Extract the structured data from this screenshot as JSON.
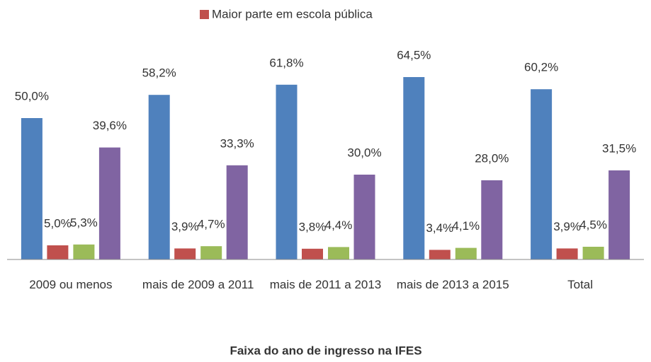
{
  "chart_data": {
    "type": "bar",
    "x_label": "Faixa do ano de ingresso na IFES",
    "categories": [
      "2009 ou menos",
      "mais de 2009 a 2011",
      "mais de 2011 a 2013",
      "mais de 2013 a 2015",
      "Total"
    ],
    "series": [
      {
        "color": "#4f81bd",
        "values": [
          50.0,
          58.2,
          61.8,
          64.5,
          60.2
        ],
        "value_labels": [
          "50,0%",
          "58,2%",
          "61,8%",
          "64,5%",
          "60,2%"
        ]
      },
      {
        "name": "Maior parte em escola pública",
        "color": "#c0504d",
        "values": [
          5.0,
          3.9,
          3.8,
          3.4,
          3.9
        ],
        "value_labels": [
          "5,0%",
          "3,9%",
          "3,8%",
          "3,4%",
          "3,9%"
        ]
      },
      {
        "color": "#9bbb59",
        "values": [
          5.3,
          4.7,
          4.4,
          4.1,
          4.5
        ],
        "value_labels": [
          "5,3%",
          "4,7%",
          "4,4%",
          "4,1%",
          "4,5%"
        ]
      },
      {
        "color": "#8064a2",
        "values": [
          39.6,
          33.3,
          30.0,
          28.0,
          31.5
        ],
        "value_labels": [
          "39,6%",
          "33,3%",
          "30,0%",
          "28,0%",
          "31,5%"
        ]
      }
    ],
    "ylim": [
      0,
      70
    ],
    "legend": "top"
  }
}
